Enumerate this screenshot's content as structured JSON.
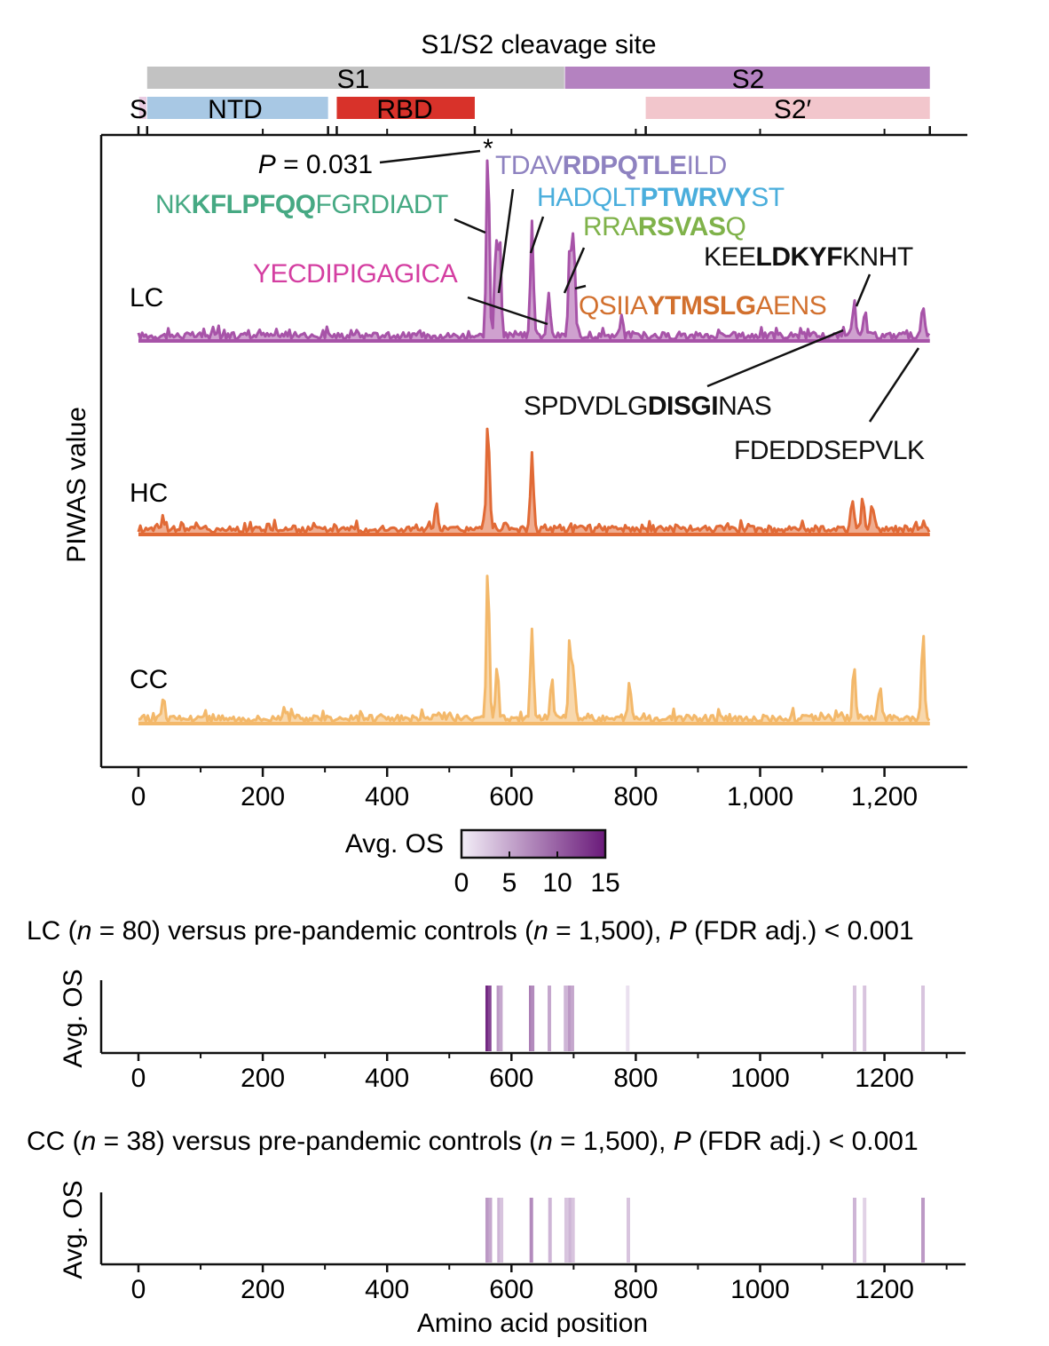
{
  "chart_data": [
    {
      "type": "line",
      "panel": "PIWAS profiles",
      "title": "S1/S2 cleavage site",
      "ylabel": "PIWAS value",
      "xlabel": "",
      "xlim": [
        -60,
        1330
      ],
      "xticks": [
        0,
        200,
        400,
        600,
        800,
        1000,
        1200
      ],
      "xtick_labels": [
        "0",
        "200",
        "400",
        "600",
        "800",
        "1,000",
        "1,200"
      ],
      "domains_top": [
        {
          "name": "S1",
          "start": 14,
          "end": 685,
          "color": "#c2c2c2"
        },
        {
          "name": "S2",
          "start": 686,
          "end": 1273,
          "color": "#b482c0"
        }
      ],
      "domains_bottom": [
        {
          "name": "SP",
          "start": 1,
          "end": 13,
          "color": "#e9cce2"
        },
        {
          "name": "NTD",
          "start": 14,
          "end": 305,
          "color": "#a8c8e4"
        },
        {
          "name": "RBD",
          "start": 319,
          "end": 541,
          "color": "#d8322a"
        },
        {
          "name": "S2′",
          "start": 816,
          "end": 1273,
          "color": "#f2c6cc"
        }
      ],
      "domain_ticks": [
        0,
        14,
        305,
        319,
        541,
        816,
        1273
      ],
      "series": [
        {
          "name": "LC",
          "color": "#a753a8",
          "peaks": [
            [
              562,
              1.0
            ],
            [
              575,
              0.48
            ],
            [
              581,
              0.5
            ],
            [
              633,
              0.57
            ],
            [
              660,
              0.23
            ],
            [
              694,
              0.47
            ],
            [
              700,
              0.52
            ],
            [
              777,
              0.1
            ],
            [
              1151,
              0.18
            ],
            [
              1169,
              0.13
            ],
            [
              1262,
              0.17
            ]
          ]
        },
        {
          "name": "HC",
          "color": "#e16a36",
          "peaks": [
            [
              562,
              0.56
            ],
            [
              633,
              0.4
            ],
            [
              480,
              0.12
            ],
            [
              1148,
              0.16
            ],
            [
              1165,
              0.18
            ],
            [
              1180,
              0.14
            ],
            [
              40,
              0.06
            ]
          ]
        },
        {
          "name": "CC",
          "color": "#f3b86a",
          "peaks": [
            [
              562,
              0.81
            ],
            [
              577,
              0.27
            ],
            [
              633,
              0.47
            ],
            [
              665,
              0.2
            ],
            [
              694,
              0.4
            ],
            [
              700,
              0.25
            ],
            [
              790,
              0.2
            ],
            [
              1151,
              0.28
            ],
            [
              1193,
              0.16
            ],
            [
              1262,
              0.46
            ],
            [
              40,
              0.12
            ]
          ]
        }
      ],
      "annotations": [
        {
          "text": "P = 0.031 *",
          "x": 562
        },
        {
          "parts": [
            {
              "t": "NK",
              "b": false
            },
            {
              "t": "KFLPFQQ",
              "b": true
            },
            {
              "t": "FGRDIADT",
              "b": false
            }
          ],
          "color": "#46a983",
          "x": 562
        },
        {
          "parts": [
            {
              "t": "TDAV",
              "b": false
            },
            {
              "t": "RDPQTLE",
              "b": true
            },
            {
              "t": "ILD",
              "b": false
            }
          ],
          "color": "#8e82c0",
          "x": 581
        },
        {
          "parts": [
            {
              "t": "HADQLT",
              "b": false
            },
            {
              "t": "PTWRVY",
              "b": true
            },
            {
              "t": "ST",
              "b": false
            }
          ],
          "color": "#4aaedc",
          "x": 633
        },
        {
          "parts": [
            {
              "t": "RRA",
              "b": false
            },
            {
              "t": "RSVAS",
              "b": true
            },
            {
              "t": "Q",
              "b": false
            }
          ],
          "color": "#7fb24a",
          "x": 694
        },
        {
          "parts": [
            {
              "t": "YECDIPIGAGICA",
              "b": false
            }
          ],
          "color": "#d43ea1",
          "x": 660
        },
        {
          "parts": [
            {
              "t": "QSIIA",
              "b": false
            },
            {
              "t": "YTMSLG",
              "b": true
            },
            {
              "t": "AENS",
              "b": false
            }
          ],
          "color": "#d2702e",
          "x": 700
        },
        {
          "parts": [
            {
              "t": "KEE",
              "b": false
            },
            {
              "t": "LDKYF",
              "b": true
            },
            {
              "t": "KNHT",
              "b": false
            }
          ],
          "color": "#111111",
          "x": 1151
        },
        {
          "parts": [
            {
              "t": "SPDVDLG",
              "b": false
            },
            {
              "t": "DISGI",
              "b": true
            },
            {
              "t": "NAS",
              "b": false
            }
          ],
          "color": "#111111",
          "x": 1169
        },
        {
          "parts": [
            {
              "t": "FDEDDSEPVLK",
              "b": false
            }
          ],
          "color": "#111111",
          "x": 1262
        }
      ]
    },
    {
      "type": "heatmap",
      "panel": "colorbar",
      "label": "Avg. OS",
      "range": [
        0,
        15
      ],
      "ticks": [
        0,
        5,
        10,
        15
      ],
      "colors": [
        "#f3eef7",
        "#6a1a7a"
      ]
    },
    {
      "type": "heatmap",
      "panel": "LC versus controls",
      "ylabel": "Avg. OS",
      "xticks": [
        0,
        200,
        400,
        600,
        800,
        1000,
        1200
      ],
      "xtick_labels": [
        "0",
        "200",
        "400",
        "600",
        "800",
        "1000",
        "1200"
      ],
      "bands": [
        [
          561,
          14
        ],
        [
          565,
          12
        ],
        [
          579,
          6
        ],
        [
          583,
          5
        ],
        [
          631,
          8
        ],
        [
          634,
          7
        ],
        [
          661,
          5
        ],
        [
          687,
          4
        ],
        [
          693,
          6
        ],
        [
          698,
          5
        ],
        [
          787,
          1
        ],
        [
          1152,
          3
        ],
        [
          1168,
          3
        ],
        [
          1262,
          3
        ]
      ]
    },
    {
      "type": "heatmap",
      "panel": "CC versus controls",
      "ylabel": "Avg. OS",
      "xlabel": "Amino acid position",
      "xticks": [
        0,
        200,
        400,
        600,
        800,
        1000,
        1200
      ],
      "xtick_labels": [
        "0",
        "200",
        "400",
        "600",
        "800",
        "1000",
        "1200"
      ],
      "bands": [
        [
          561,
          6
        ],
        [
          566,
          5
        ],
        [
          580,
          4
        ],
        [
          584,
          3
        ],
        [
          632,
          7
        ],
        [
          662,
          4
        ],
        [
          688,
          3
        ],
        [
          694,
          4
        ],
        [
          699,
          3
        ],
        [
          788,
          3
        ],
        [
          1152,
          4
        ],
        [
          1168,
          2
        ],
        [
          1262,
          6
        ]
      ]
    }
  ],
  "captions": {
    "lc": {
      "pre": "LC (",
      "n1var": "n",
      "n1": " = 80) versus pre-pandemic controls (",
      "n2var": "n",
      "n2": " = 1,500), ",
      "pvar": "P",
      "post": " (FDR adj.) < 0.001"
    },
    "cc": {
      "pre": "CC (",
      "n1var": "n",
      "n1": " = 38) versus pre-pandemic controls (",
      "n2var": "n",
      "n2": " = 1,500), ",
      "pvar": "P",
      "post": " (FDR adj.) < 0.001"
    }
  }
}
